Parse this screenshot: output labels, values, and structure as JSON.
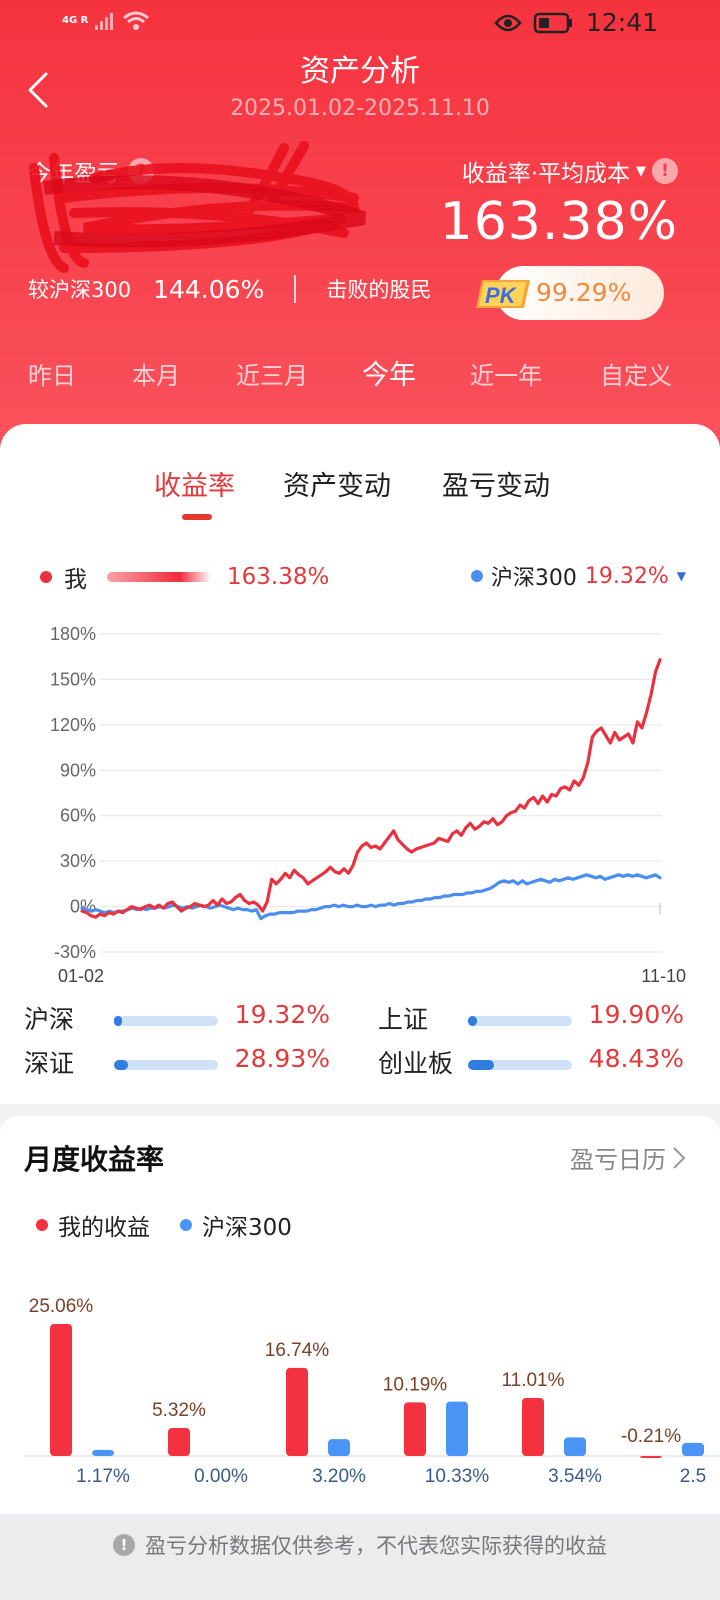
{
  "status_bar": {
    "network": "4G R",
    "time": "12:41"
  },
  "header": {
    "title": "资产分析",
    "date_range": "2025.01.02-2025.11.10",
    "profit_label": "今年盈亏",
    "rate_label": "收益率·平均成本",
    "rate_value": "163.38%",
    "compare_label": "较沪深300",
    "compare_value": "144.06%",
    "beat_label": "击败的股民",
    "pk_badge": "PK",
    "beat_value": "99.29%"
  },
  "periods": [
    "昨日",
    "本月",
    "近三月",
    "今年",
    "近一年",
    "自定义"
  ],
  "active_period": "今年",
  "tabs": [
    "收益率",
    "资产变动",
    "盈亏变动"
  ],
  "legend": {
    "me_label": "我",
    "me_value": "163.38%",
    "bench_label": "沪深300",
    "bench_value": "19.32%"
  },
  "chart_data": {
    "type": "line",
    "y_ticks": [
      "180%",
      "150%",
      "120%",
      "90%",
      "60%",
      "30%",
      "0%",
      "-30%"
    ],
    "ylim": [
      -30,
      180
    ],
    "x_labels": [
      "01-02",
      "11-10"
    ],
    "series": [
      {
        "name": "我",
        "color": "#e8323f",
        "values": [
          -3,
          -4,
          -6,
          -7,
          -5,
          -6,
          -4,
          -5,
          -3,
          -4,
          -2,
          0,
          -1,
          -2,
          0,
          1,
          -1,
          1,
          -1,
          2,
          3,
          0,
          -3,
          -1,
          0,
          2,
          1,
          0,
          1,
          4,
          1,
          5,
          2,
          3,
          6,
          8,
          4,
          2,
          3,
          1,
          -3,
          3,
          18,
          15,
          18,
          22,
          19,
          24,
          21,
          19,
          15,
          17,
          19,
          21,
          23,
          26,
          23,
          22,
          25,
          22,
          27,
          36,
          40,
          42,
          39,
          40,
          38,
          42,
          46,
          50,
          44,
          41,
          38,
          36,
          38,
          39,
          40,
          41,
          42,
          45,
          44,
          43,
          48,
          50,
          47,
          52,
          55,
          51,
          53,
          56,
          55,
          58,
          54,
          56,
          60,
          62,
          63,
          67,
          65,
          70,
          72,
          68,
          73,
          69,
          74,
          73,
          78,
          79,
          77,
          83,
          80,
          85,
          95,
          112,
          116,
          118,
          113,
          108,
          115,
          110,
          112,
          114,
          108,
          122,
          118,
          128,
          140,
          155,
          163
        ]
      },
      {
        "name": "沪深300",
        "color": "#4a8ef0",
        "values": [
          -1,
          -2,
          -3,
          -2,
          -3,
          -4,
          -3,
          -4,
          -3,
          -3,
          -2,
          -1,
          -2,
          -1,
          -2,
          -1,
          -1,
          0,
          -1,
          0,
          1,
          0,
          -1,
          0,
          -1,
          0,
          1,
          0,
          -1,
          0,
          1,
          0,
          -1,
          -2,
          -1,
          -2,
          -2,
          -3,
          -2,
          -8,
          -6,
          -5,
          -5,
          -4,
          -4,
          -4,
          -4,
          -3,
          -3,
          -3,
          -2,
          -2,
          -1,
          0,
          0,
          1,
          0,
          1,
          0,
          0,
          1,
          0,
          0,
          1,
          0,
          1,
          1,
          2,
          1,
          2,
          2,
          3,
          3,
          4,
          4,
          5,
          5,
          6,
          6,
          7,
          7,
          8,
          8,
          8,
          9,
          9,
          10,
          10,
          11,
          12,
          14,
          16,
          17,
          16,
          17,
          15,
          17,
          15,
          16,
          17,
          18,
          17,
          16,
          18,
          17,
          18,
          19,
          18,
          19,
          20,
          21,
          20,
          19,
          20,
          18,
          19,
          20,
          21,
          20,
          21,
          20,
          21,
          20,
          19,
          20,
          21,
          19
        ]
      }
    ]
  },
  "indices": [
    {
      "name": "沪深",
      "value": "19.32%",
      "level": 0.08
    },
    {
      "name": "上证",
      "value": "19.90%",
      "level": 0.09
    },
    {
      "name": "深证",
      "value": "28.93%",
      "level": 0.13
    },
    {
      "name": "创业板",
      "value": "48.43%",
      "level": 0.25
    }
  ],
  "monthly": {
    "title": "月度收益率",
    "calendar_link": "盈亏日历",
    "legend_me": "我的收益",
    "legend_bench": "沪深300",
    "chart_data": {
      "type": "bar",
      "series": [
        {
          "name": "我的收益",
          "color": "#f4313e",
          "values": [
            25.06,
            5.32,
            16.74,
            10.19,
            11.01,
            -0.21
          ],
          "labels": [
            "25.06%",
            "5.32%",
            "16.74%",
            "10.19%",
            "11.01%",
            "-0.21%"
          ]
        },
        {
          "name": "沪深300",
          "color": "#4a94f5",
          "values": [
            1.17,
            0.0,
            3.2,
            10.33,
            3.54,
            2.5
          ],
          "labels": [
            "1.17%",
            "0.00%",
            "3.20%",
            "10.33%",
            "3.54%",
            "2.5"
          ]
        }
      ]
    }
  },
  "footer": {
    "note": "盈亏分析数据仅供参考，不代表您实际获得的收益"
  }
}
